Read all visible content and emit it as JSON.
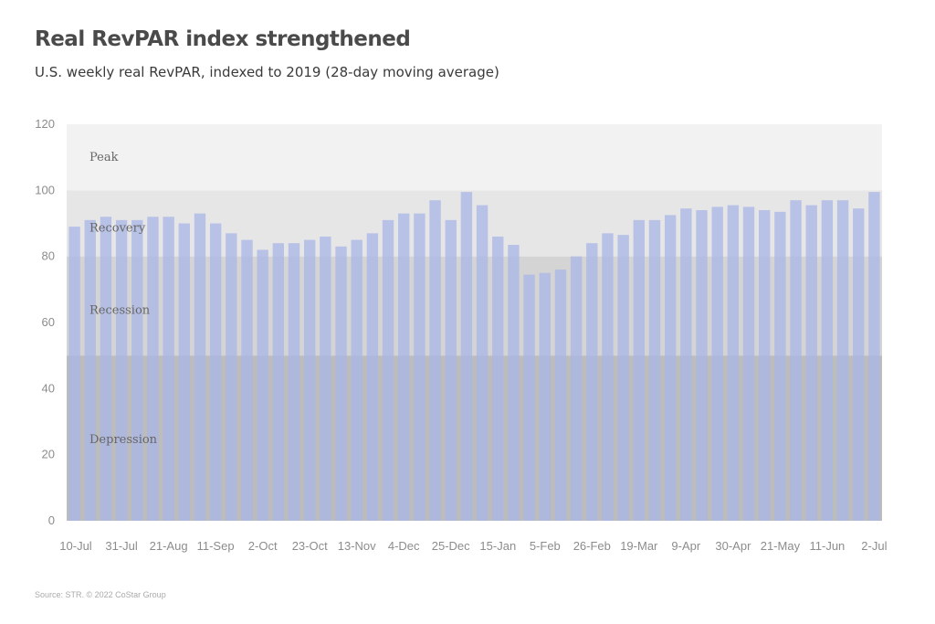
{
  "header": {
    "title": "Real RevPAR index strengthened",
    "subtitle": "U.S. weekly real RevPAR, indexed to 2019 (28-day moving average)"
  },
  "footer": {
    "source": "Source: STR. © 2022 CoStar Group"
  },
  "chart_data": {
    "type": "bar",
    "title": "Real RevPAR index strengthened",
    "subtitle": "U.S. weekly real RevPAR, indexed to 2019 (28-day moving average)",
    "xlabel": "",
    "ylabel": "",
    "ylim": [
      0,
      120
    ],
    "yticks": [
      0,
      20,
      40,
      60,
      80,
      100,
      120
    ],
    "grid": false,
    "legend": "none",
    "x_tick_labels": [
      "10-Jul",
      "31-Jul",
      "21-Aug",
      "11-Sep",
      "2-Oct",
      "23-Oct",
      "13-Nov",
      "4-Dec",
      "25-Dec",
      "15-Jan",
      "5-Feb",
      "26-Feb",
      "19-Mar",
      "9-Apr",
      "30-Apr",
      "21-May",
      "11-Jun",
      "2-Jul"
    ],
    "bands": [
      {
        "label": "Peak",
        "from": 100,
        "to": 120,
        "color": "#f2f2f2"
      },
      {
        "label": "Recovery",
        "from": 80,
        "to": 100,
        "color": "#e6e6e6"
      },
      {
        "label": "Recession",
        "from": 50,
        "to": 80,
        "color": "#d4d4d4"
      },
      {
        "label": "Depression",
        "from": 0,
        "to": 50,
        "color": "#bcbcbc"
      }
    ],
    "bar_color": "#aab6e6",
    "series": [
      {
        "values": [
          89,
          91,
          92,
          91,
          91,
          92,
          92,
          90,
          93,
          90,
          87,
          85,
          82,
          84,
          84,
          85,
          86,
          83,
          85,
          87,
          91,
          93,
          93,
          97,
          91,
          99.5,
          95.5,
          86,
          83.5,
          74.5,
          75,
          76,
          80,
          84,
          87,
          86.5,
          91,
          91,
          92.5,
          94.5,
          94,
          95,
          95.5,
          95,
          94,
          93.5,
          97,
          95.5,
          97,
          97,
          94.5,
          99.5
        ]
      }
    ]
  }
}
